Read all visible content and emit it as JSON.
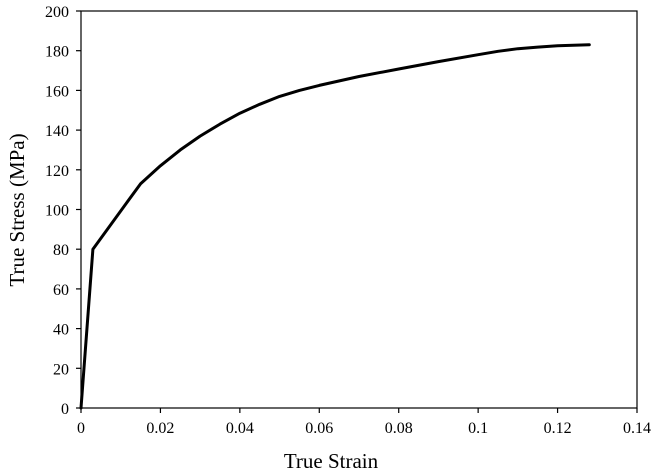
{
  "chart_data": {
    "type": "line",
    "title": "",
    "xlabel": "True Strain",
    "ylabel": "True Stress (MPa)",
    "xlim": [
      0,
      0.14
    ],
    "ylim": [
      0,
      200
    ],
    "xticks": [
      0,
      0.02,
      0.04,
      0.06,
      0.08,
      0.1,
      0.12,
      0.14
    ],
    "yticks": [
      0,
      20,
      40,
      60,
      80,
      100,
      120,
      140,
      160,
      180,
      200
    ],
    "xtick_labels": [
      "0",
      "0.02",
      "0.04",
      "0.06",
      "0.08",
      "0.1",
      "0.12",
      "0.14"
    ],
    "ytick_labels": [
      "0",
      "20",
      "40",
      "60",
      "80",
      "100",
      "120",
      "140",
      "160",
      "180",
      "200"
    ],
    "grid": false,
    "legend": "none",
    "series": [
      {
        "color": "#000000",
        "x": [
          0,
          0.003,
          0.007,
          0.011,
          0.015,
          0.02,
          0.025,
          0.03,
          0.035,
          0.04,
          0.045,
          0.05,
          0.055,
          0.06,
          0.07,
          0.08,
          0.09,
          0.1,
          0.105,
          0.11,
          0.115,
          0.12,
          0.128
        ],
        "y": [
          0,
          80,
          91,
          102,
          113,
          122,
          130,
          137,
          143,
          148.5,
          153,
          157,
          160,
          162.5,
          167,
          170.8,
          174.5,
          178,
          179.7,
          181,
          181.8,
          182.5,
          183
        ]
      }
    ]
  }
}
